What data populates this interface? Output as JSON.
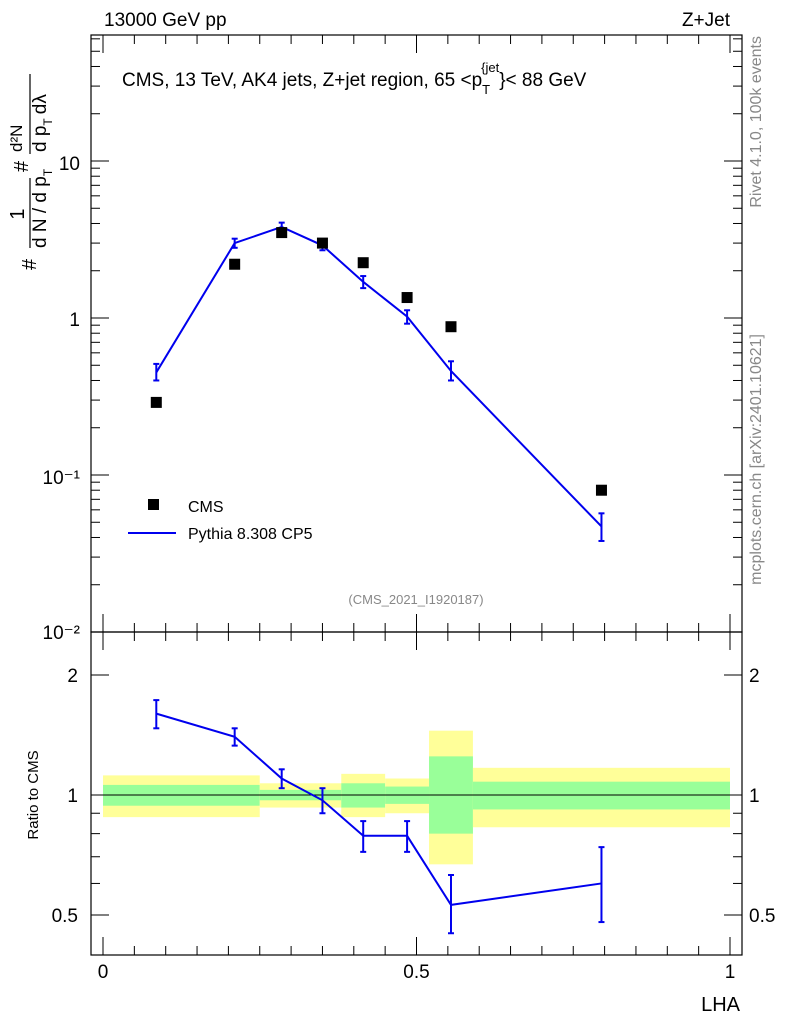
{
  "header": {
    "left": "13000 GeV pp",
    "right": "Z+Jet"
  },
  "side_labels": {
    "top": "Rivet 4.1.0,  100k events",
    "bottom": "mcplots.cern.ch [arXiv:2401.10621]"
  },
  "colors": {
    "mc": "#0000ee",
    "data": "#000000",
    "band_inner": "#99ff99",
    "band_outer": "#ffff99"
  },
  "chart_data": [
    {
      "type": "scatter",
      "title": "CMS, 13 TeV, AK4 jets, Z+jet region, 65 <p_T^{jet}< 88 GeV",
      "title_parts": {
        "prefix": "CMS, 13 TeV, AK4 jets, Z+jet region, 65 <p",
        "sub": "T",
        "sup": "{jet",
        "suffix": "}< 88 GeV"
      },
      "ylabel_parts": {
        "hash1": "#",
        "one": "1",
        "dN": "d N / d p",
        "sub_T1": "T",
        "hash2": "#",
        "d2N": "d²N",
        "dpT": "d p",
        "sub_T2": "T",
        "dlambda": "dλ"
      },
      "yscale": "log",
      "ylim": [
        0.01,
        60
      ],
      "y_tick_labels": {
        "tenth": "10⁻¹",
        "one": "1",
        "ten": "10",
        "hundredth": "10⁻²"
      },
      "watermark": "(CMS_2021_I1920187)",
      "legend": {
        "position": "middle-left",
        "entries": [
          {
            "label": "CMS",
            "style": "marker"
          },
          {
            "label": "Pythia 8.308 CP5",
            "style": "line"
          }
        ]
      },
      "series": [
        {
          "name": "CMS",
          "x": [
            0.085,
            0.21,
            0.285,
            0.35,
            0.415,
            0.485,
            0.555,
            0.795
          ],
          "values": [
            0.29,
            2.2,
            3.5,
            3.0,
            2.25,
            1.35,
            0.88,
            0.08
          ]
        },
        {
          "name": "Pythia 8.308 CP5",
          "x": [
            0.085,
            0.21,
            0.285,
            0.35,
            0.415,
            0.485,
            0.555,
            0.795
          ],
          "values": [
            0.45,
            3.0,
            3.8,
            2.9,
            1.7,
            1.02,
            0.46,
            0.047
          ],
          "err_low": [
            0.4,
            2.8,
            3.55,
            2.7,
            1.55,
            0.92,
            0.4,
            0.038
          ],
          "err_high": [
            0.51,
            3.2,
            4.05,
            3.1,
            1.85,
            1.12,
            0.53,
            0.057
          ]
        }
      ]
    },
    {
      "type": "line",
      "ylabel": "Ratio to CMS",
      "xlabel": "LHA",
      "xlim": [
        0,
        1
      ],
      "ylim": [
        0.4,
        2.3
      ],
      "y_ticks": [
        0.5,
        1,
        2
      ],
      "y_tick_labels": [
        "0.5",
        "1",
        "2"
      ],
      "x_ticks": [
        0,
        0.5,
        1
      ],
      "x_tick_labels": [
        "0",
        "0.5",
        "1"
      ],
      "reference_line": 1,
      "bands": [
        {
          "x0": 0.0,
          "x1": 0.25,
          "inner": [
            0.94,
            1.06
          ],
          "outer": [
            0.88,
            1.12
          ]
        },
        {
          "x0": 0.25,
          "x1": 0.38,
          "inner": [
            0.97,
            1.03
          ],
          "outer": [
            0.93,
            1.07
          ]
        },
        {
          "x0": 0.38,
          "x1": 0.45,
          "inner": [
            0.93,
            1.07
          ],
          "outer": [
            0.88,
            1.13
          ]
        },
        {
          "x0": 0.45,
          "x1": 0.52,
          "inner": [
            0.95,
            1.05
          ],
          "outer": [
            0.9,
            1.1
          ]
        },
        {
          "x0": 0.52,
          "x1": 0.59,
          "inner": [
            0.8,
            1.25
          ],
          "outer": [
            0.67,
            1.45
          ]
        },
        {
          "x0": 0.59,
          "x1": 1.0,
          "inner": [
            0.92,
            1.08
          ],
          "outer": [
            0.83,
            1.17
          ]
        }
      ],
      "series": [
        {
          "name": "Pythia 8.308 CP5 / CMS",
          "x": [
            0.085,
            0.21,
            0.285,
            0.35,
            0.415,
            0.485,
            0.555,
            0.795
          ],
          "values": [
            1.6,
            1.4,
            1.1,
            0.97,
            0.79,
            0.79,
            0.53,
            0.6
          ],
          "err_low": [
            1.47,
            1.33,
            1.04,
            0.9,
            0.72,
            0.72,
            0.45,
            0.48
          ],
          "err_high": [
            1.73,
            1.47,
            1.16,
            1.04,
            0.86,
            0.86,
            0.63,
            0.74
          ]
        }
      ]
    }
  ]
}
